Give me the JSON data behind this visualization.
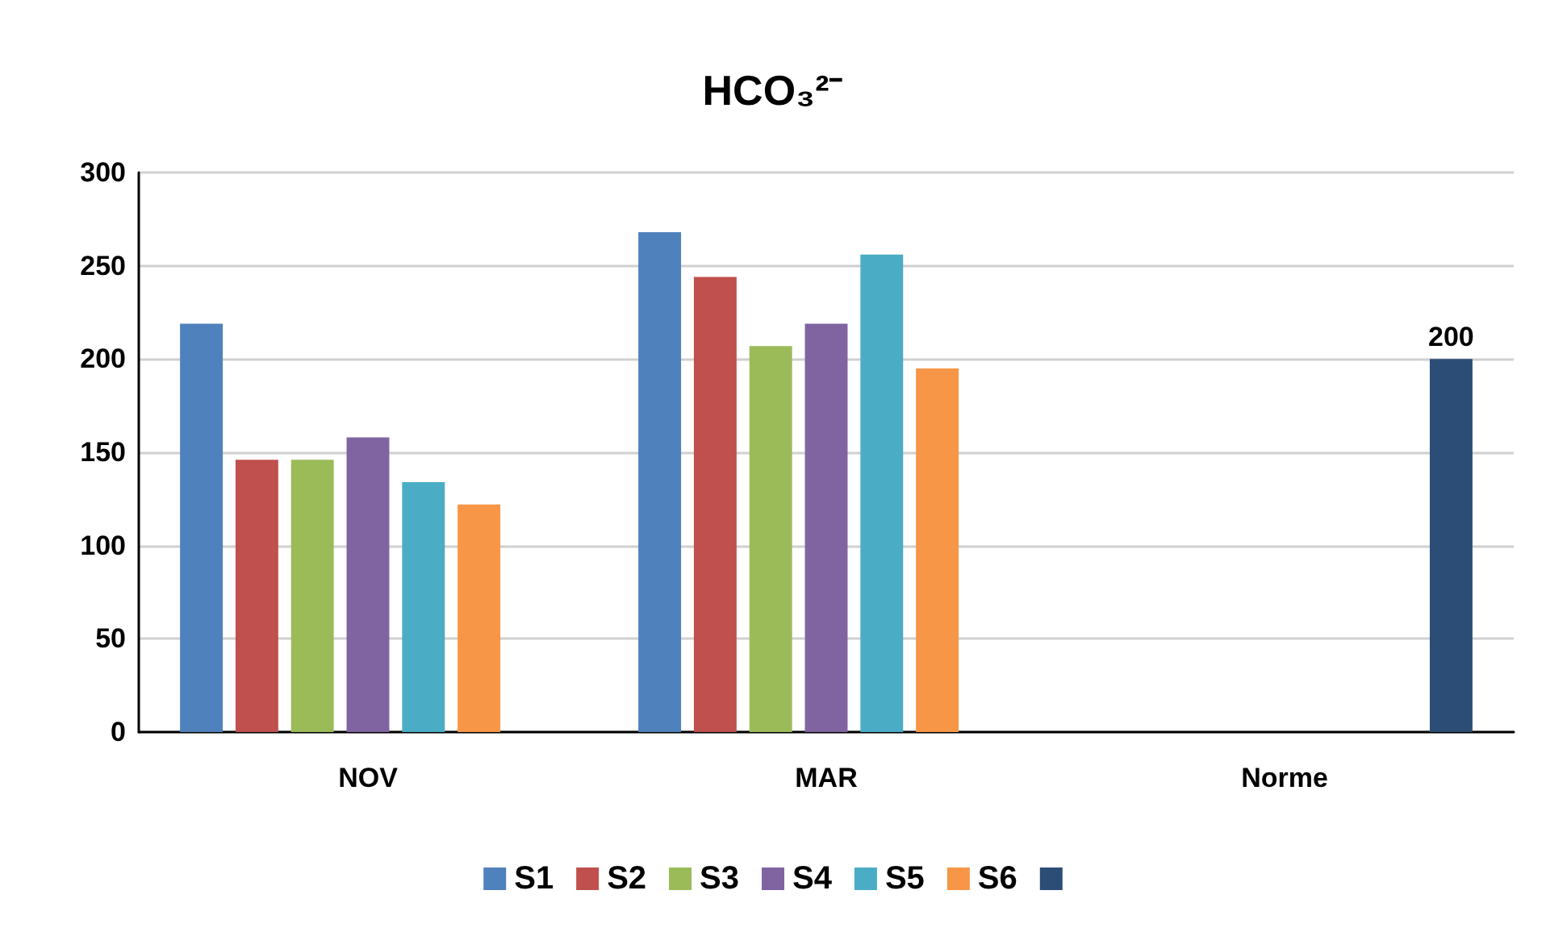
{
  "chart_data": {
    "type": "bar",
    "title": "HCO₃²⁻",
    "categories": [
      "NOV",
      "MAR",
      "Norme"
    ],
    "series": [
      {
        "name": "S1",
        "color": "#4f81bd",
        "values": [
          219,
          268,
          null
        ]
      },
      {
        "name": "S2",
        "color": "#c0504d",
        "values": [
          146,
          244,
          null
        ]
      },
      {
        "name": "S3",
        "color": "#9bbb59",
        "values": [
          146,
          207,
          null
        ]
      },
      {
        "name": "S4",
        "color": "#8064a2",
        "values": [
          158,
          219,
          null
        ]
      },
      {
        "name": "S5",
        "color": "#4bacc6",
        "values": [
          134,
          256,
          null
        ]
      },
      {
        "name": "S6",
        "color": "#f79646",
        "values": [
          122,
          195,
          null
        ]
      },
      {
        "color": "#2c4d75",
        "values": [
          null,
          null,
          200
        ],
        "value_labels": [
          null,
          null,
          "200"
        ]
      }
    ],
    "ylim": [
      0,
      300
    ],
    "yticks": [
      0,
      50,
      100,
      150,
      200,
      250,
      300
    ],
    "grid": "y",
    "legend": "bottom"
  }
}
